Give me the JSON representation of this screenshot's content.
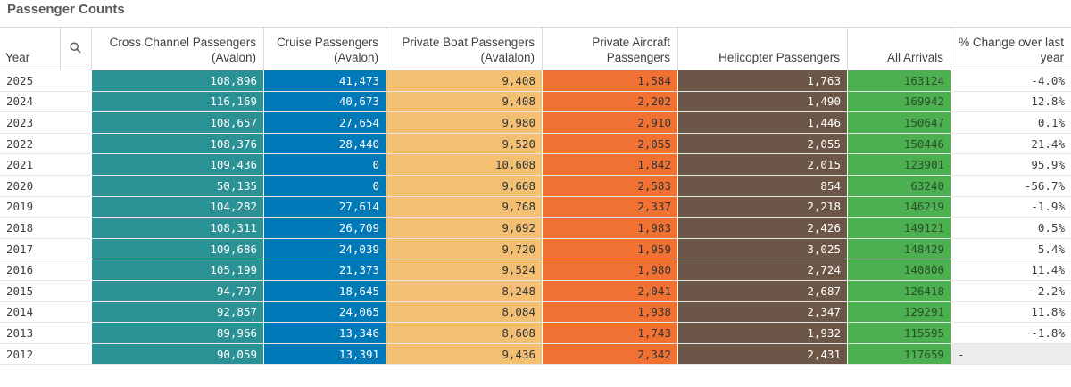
{
  "title": "Passenger Counts",
  "columns": {
    "year": "Year",
    "cross": [
      "Cross Channel Passengers",
      "(Avalon)"
    ],
    "cruise": [
      "Cruise Passengers",
      "(Avalon)"
    ],
    "boat": [
      "Private Boat Passengers",
      "(Avalalon)"
    ],
    "air": [
      "Private Aircraft",
      "Passengers"
    ],
    "heli": "Helicopter Passengers",
    "all": "All Arrivals",
    "pct": [
      "% Change over last",
      "year"
    ]
  },
  "colors": {
    "cross": "#2a9294",
    "cruise": "#0079b8",
    "boat": "#f2bf73",
    "air": "#f07132",
    "heli": "#6b5647",
    "all": "#4caf50"
  },
  "rows": [
    {
      "year": "2025",
      "cross": "108,896",
      "cruise": "41,473",
      "boat": "9,408",
      "air": "1,584",
      "heli": "1,763",
      "all": "163124",
      "pct": "-4.0%"
    },
    {
      "year": "2024",
      "cross": "116,169",
      "cruise": "40,673",
      "boat": "9,408",
      "air": "2,202",
      "heli": "1,490",
      "all": "169942",
      "pct": "12.8%"
    },
    {
      "year": "2023",
      "cross": "108,657",
      "cruise": "27,654",
      "boat": "9,980",
      "air": "2,910",
      "heli": "1,446",
      "all": "150647",
      "pct": "0.1%"
    },
    {
      "year": "2022",
      "cross": "108,376",
      "cruise": "28,440",
      "boat": "9,520",
      "air": "2,055",
      "heli": "2,055",
      "all": "150446",
      "pct": "21.4%"
    },
    {
      "year": "2021",
      "cross": "109,436",
      "cruise": "0",
      "boat": "10,608",
      "air": "1,842",
      "heli": "2,015",
      "all": "123901",
      "pct": "95.9%"
    },
    {
      "year": "2020",
      "cross": "50,135",
      "cruise": "0",
      "boat": "9,668",
      "air": "2,583",
      "heli": "854",
      "all": "63240",
      "pct": "-56.7%"
    },
    {
      "year": "2019",
      "cross": "104,282",
      "cruise": "27,614",
      "boat": "9,768",
      "air": "2,337",
      "heli": "2,218",
      "all": "146219",
      "pct": "-1.9%"
    },
    {
      "year": "2018",
      "cross": "108,311",
      "cruise": "26,709",
      "boat": "9,692",
      "air": "1,983",
      "heli": "2,426",
      "all": "149121",
      "pct": "0.5%"
    },
    {
      "year": "2017",
      "cross": "109,686",
      "cruise": "24,039",
      "boat": "9,720",
      "air": "1,959",
      "heli": "3,025",
      "all": "148429",
      "pct": "5.4%"
    },
    {
      "year": "2016",
      "cross": "105,199",
      "cruise": "21,373",
      "boat": "9,524",
      "air": "1,980",
      "heli": "2,724",
      "all": "140800",
      "pct": "11.4%"
    },
    {
      "year": "2015",
      "cross": "94,797",
      "cruise": "18,645",
      "boat": "8,248",
      "air": "2,041",
      "heli": "2,687",
      "all": "126418",
      "pct": "-2.2%"
    },
    {
      "year": "2014",
      "cross": "92,857",
      "cruise": "24,065",
      "boat": "8,084",
      "air": "1,938",
      "heli": "2,347",
      "all": "129291",
      "pct": "11.8%"
    },
    {
      "year": "2013",
      "cross": "89,966",
      "cruise": "13,346",
      "boat": "8,608",
      "air": "1,743",
      "heli": "1,932",
      "all": "115595",
      "pct": "-1.8%"
    },
    {
      "year": "2012",
      "cross": "90,059",
      "cruise": "13,391",
      "boat": "9,436",
      "air": "2,342",
      "heli": "2,431",
      "all": "117659",
      "pct": "-"
    }
  ]
}
